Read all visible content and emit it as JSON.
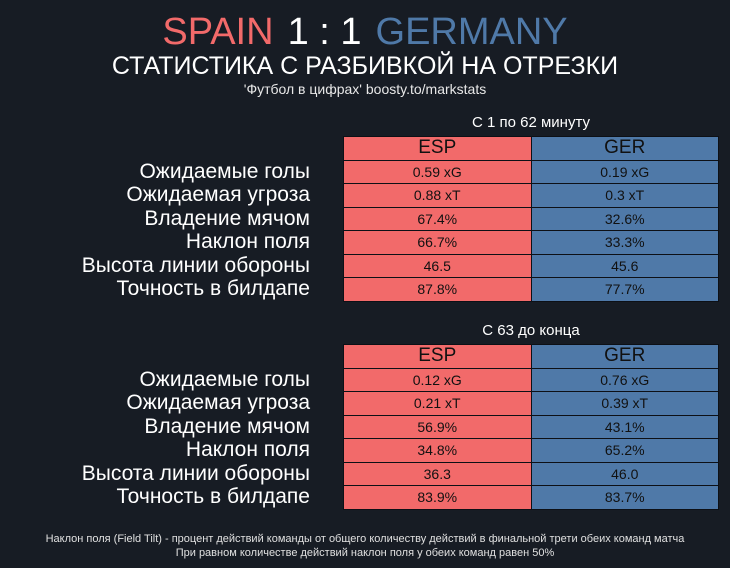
{
  "header": {
    "home_team": "SPAIN",
    "score": "1 : 1",
    "away_team": "GERMANY",
    "subtitle": "СТАТИСТИКА С РАЗБИВКОЙ НА ОТРЕЗКИ",
    "source": "'Футбол в цифрах' boosty.to/markstats"
  },
  "colors": {
    "home": "#f26a6a",
    "away": "#4f79a8",
    "background": "#171c24"
  },
  "columns": {
    "home": "ESP",
    "away": "GER"
  },
  "metrics": [
    "Ожидаемые голы",
    "Ожидаемая угроза",
    "Владение мячом",
    "Наклон поля",
    "Высота линии обороны",
    "Точность в билдапе"
  ],
  "periods": [
    {
      "label": "С 1 по 62 минуту",
      "rows": [
        {
          "home": "0.59 xG",
          "away": "0.19 xG"
        },
        {
          "home": "0.88 xT",
          "away": "0.3 xT"
        },
        {
          "home": "67.4%",
          "away": "32.6%"
        },
        {
          "home": "66.7%",
          "away": "33.3%"
        },
        {
          "home": "46.5",
          "away": "45.6"
        },
        {
          "home": "87.8%",
          "away": "77.7%"
        }
      ]
    },
    {
      "label": "С 63 до конца",
      "rows": [
        {
          "home": "0.12 xG",
          "away": "0.76 xG"
        },
        {
          "home": "0.21 xT",
          "away": "0.39 xT"
        },
        {
          "home": "56.9%",
          "away": "43.1%"
        },
        {
          "home": "34.8%",
          "away": "65.2%"
        },
        {
          "home": "36.3",
          "away": "46.0"
        },
        {
          "home": "83.9%",
          "away": "83.7%"
        }
      ]
    }
  ],
  "footnote": {
    "line1": "Наклон поля (Field Tilt) - процент действий команды от общего количеству действий в финальной трети обеих команд матча",
    "line2": "При равном количестве действий наклон поля у обеих команд равен 50%"
  }
}
